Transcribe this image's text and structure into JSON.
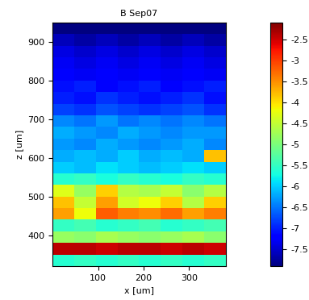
{
  "chart_data": {
    "type": "heatmap",
    "title": "B Sep07",
    "x_label": "x [um]",
    "y_label": "z [um]",
    "xlim": [
      0,
      380
    ],
    "xticks": [
      100,
      200,
      300
    ],
    "ylim": [
      320,
      950
    ],
    "yticks": [
      400,
      500,
      600,
      700,
      800,
      900
    ],
    "x_edges": [
      0,
      47.5,
      95,
      142.5,
      190,
      237.5,
      285,
      332.5,
      380
    ],
    "y_edges": [
      320,
      350,
      380,
      410,
      440,
      470,
      500,
      530,
      560,
      590,
      620,
      650,
      680,
      710,
      740,
      770,
      800,
      830,
      860,
      890,
      920,
      950
    ],
    "cells": [
      [
        -5.6,
        -5.5,
        -5.6,
        -5.5,
        -5.6,
        -5.5,
        -5.6,
        -5.5
      ],
      [
        -2.4,
        -2.4,
        -2.5,
        -2.4,
        -2.4,
        -2.5,
        -2.4,
        -2.5
      ],
      [
        -4.8,
        -4.9,
        -4.7,
        -4.8,
        -4.9,
        -4.8,
        -4.7,
        -4.9
      ],
      [
        -5.5,
        -5.4,
        -5.6,
        -5.5,
        -5.4,
        -5.6,
        -5.5,
        -5.4
      ],
      [
        -3.6,
        -4.2,
        -3.2,
        -3.4,
        -3.5,
        -3.3,
        -3.6,
        -3.4
      ],
      [
        -3.8,
        -4.5,
        -3.6,
        -4.4,
        -4.2,
        -3.9,
        -4.6,
        -3.9
      ],
      [
        -4.3,
        -4.8,
        -3.9,
        -4.6,
        -4.7,
        -4.5,
        -4.9,
        -4.6
      ],
      [
        -5.6,
        -5.5,
        -5.7,
        -5.5,
        -5.6,
        -5.7,
        -5.5,
        -5.6
      ],
      [
        -6.0,
        -6.1,
        -5.9,
        -6.0,
        -6.1,
        -6.0,
        -5.9,
        -6.0
      ],
      [
        -6.2,
        -6.1,
        -6.2,
        -6.0,
        -6.2,
        -6.1,
        -6.2,
        -3.8
      ],
      [
        -6.3,
        -6.4,
        -6.2,
        -6.3,
        -6.4,
        -6.3,
        -6.2,
        -6.4
      ],
      [
        -6.2,
        -6.3,
        -6.4,
        -6.2,
        -6.3,
        -6.4,
        -6.3,
        -6.3
      ],
      [
        -6.4,
        -6.5,
        -6.3,
        -6.5,
        -6.4,
        -6.5,
        -6.4,
        -6.5
      ],
      [
        -6.8,
        -6.9,
        -6.7,
        -6.8,
        -6.9,
        -6.8,
        -6.7,
        -6.9
      ],
      [
        -7.0,
        -7.1,
        -6.9,
        -7.0,
        -7.1,
        -7.0,
        -6.9,
        -7.1
      ],
      [
        -7.1,
        -7.0,
        -7.2,
        -7.1,
        -7.0,
        -7.2,
        -7.1,
        -7.0
      ],
      [
        -7.2,
        -7.3,
        -7.2,
        -7.3,
        -7.2,
        -7.3,
        -7.2,
        -7.3
      ],
      [
        -7.3,
        -7.4,
        -7.3,
        -7.4,
        -7.3,
        -7.4,
        -7.3,
        -7.4
      ],
      [
        -7.4,
        -7.5,
        -7.4,
        -7.5,
        -7.4,
        -7.5,
        -7.4,
        -7.5
      ],
      [
        -7.6,
        -7.7,
        -7.6,
        -7.7,
        -7.6,
        -7.7,
        -7.6,
        -7.7
      ],
      [
        -7.9,
        -7.9,
        -7.9,
        -7.9,
        -7.9,
        -7.9,
        -7.9,
        -7.9
      ]
    ],
    "colorbar_range": [
      -7.9,
      -2.1
    ],
    "colorbar_ticks": [
      -7.5,
      -7,
      -6.5,
      -6,
      -5.5,
      -5,
      -4.5,
      -4,
      -3.5,
      -3,
      -2.5
    ]
  }
}
